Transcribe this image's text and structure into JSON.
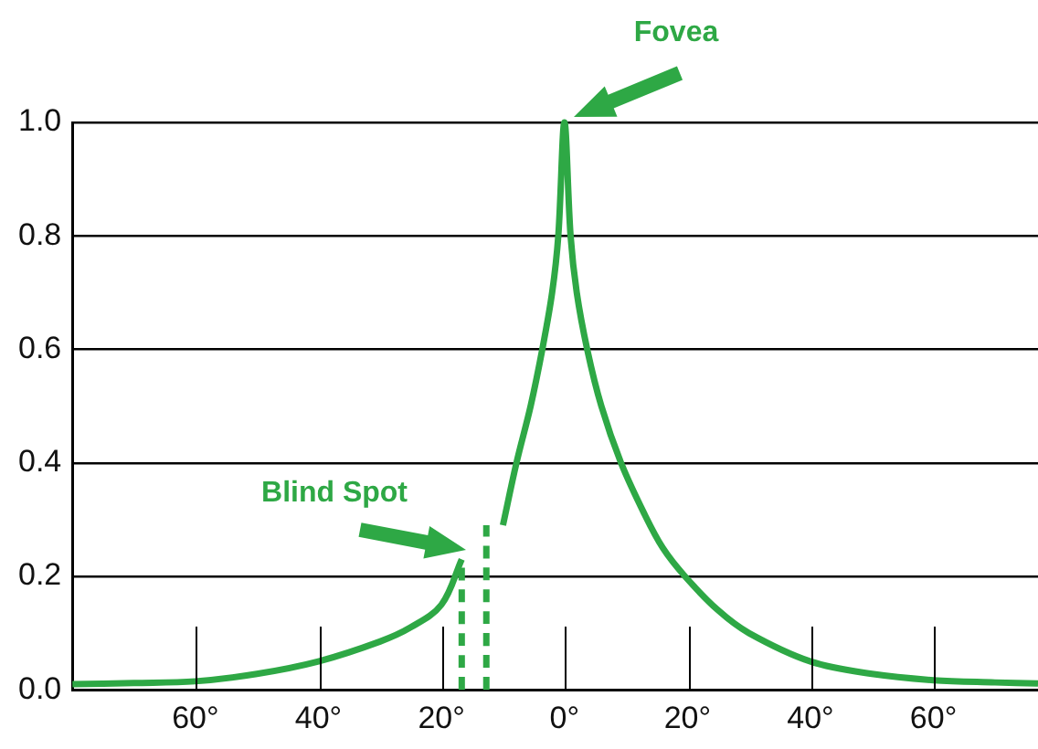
{
  "chart_data": {
    "type": "line",
    "xlim": [
      -80,
      77
    ],
    "ylim": [
      0,
      1
    ],
    "xticks": [
      {
        "value": -60,
        "label": "60°"
      },
      {
        "value": -40,
        "label": "40°"
      },
      {
        "value": -20,
        "label": "20°"
      },
      {
        "value": 0,
        "label": "0°"
      },
      {
        "value": 20,
        "label": "20°"
      },
      {
        "value": 40,
        "label": "40°"
      },
      {
        "value": 60,
        "label": "60°"
      }
    ],
    "yticks": [
      {
        "value": 0,
        "label": "0.0"
      },
      {
        "value": 0.2,
        "label": "0.2"
      },
      {
        "value": 0.4,
        "label": "0.4"
      },
      {
        "value": 0.6,
        "label": "0.6"
      },
      {
        "value": 0.8,
        "label": "0.8"
      },
      {
        "value": 1,
        "label": "1.0"
      }
    ],
    "grid": "y",
    "legend": false,
    "marker": "none",
    "series": [
      {
        "color": "#2ea845",
        "line_style": "solid",
        "x": [
          -80,
          -70,
          -60,
          -50,
          -40,
          -30,
          -25,
          -20,
          -16.7,
          -12.7,
          -10,
          -7.8,
          -5.5,
          -3.6,
          -2,
          -1,
          0,
          1,
          2,
          3.7,
          6,
          9.2,
          13,
          16,
          19.6,
          25,
          30,
          40,
          50,
          60,
          70,
          77
        ],
        "values": [
          0.01,
          0.012,
          0.015,
          0.028,
          0.05,
          0.085,
          0.11,
          0.15,
          0.23,
          null,
          0.29,
          0.4,
          0.5,
          0.6,
          0.7,
          0.8,
          1.0,
          0.8,
          0.7,
          0.6,
          0.5,
          0.4,
          0.31,
          0.25,
          0.2,
          0.14,
          0.1,
          0.05,
          0.028,
          0.017,
          0.013,
          0.011
        ]
      },
      {
        "color": "#2ea845",
        "line_style": "dashed",
        "x": [
          -16.7,
          -16.7
        ],
        "values": [
          0,
          0.23
        ]
      },
      {
        "color": "#2ea845",
        "line_style": "dashed",
        "x": [
          -12.7,
          -12.7
        ],
        "values": [
          0,
          0.29
        ]
      }
    ],
    "annotations": [
      "Fovea",
      "Blind Spot"
    ]
  }
}
